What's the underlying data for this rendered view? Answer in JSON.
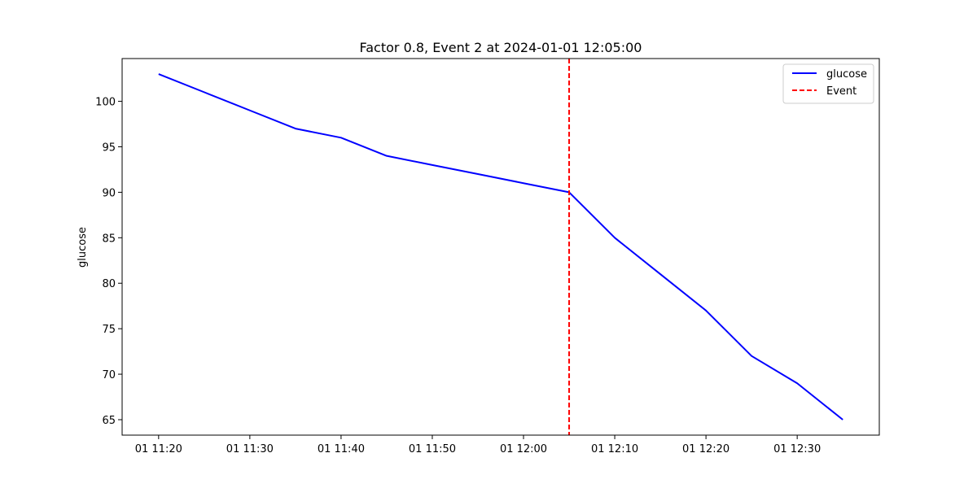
{
  "chart_data": {
    "type": "line",
    "title": "Factor 0.8, Event 2 at 2024-01-01 12:05:00",
    "xlabel": "",
    "ylabel": "glucose",
    "x": [
      "11:20",
      "11:25",
      "11:30",
      "11:35",
      "11:40",
      "11:45",
      "11:50",
      "11:55",
      "12:00",
      "12:05",
      "12:10",
      "12:15",
      "12:20",
      "12:25",
      "12:30",
      "12:35"
    ],
    "series": [
      {
        "name": "glucose",
        "color": "#0000ff",
        "style": "solid",
        "values": [
          103,
          101,
          99,
          97,
          96,
          94,
          93,
          92,
          91,
          90,
          85,
          81,
          77,
          72,
          69,
          65
        ]
      }
    ],
    "event": {
      "name": "Event",
      "x": "12:05",
      "color": "#ff0000",
      "style": "dashed"
    },
    "xlim": [
      "11:16",
      "12:39"
    ],
    "ylim": [
      63.3,
      104.7
    ],
    "x_ticks": [
      {
        "value": "11:20",
        "label": "01 11:20"
      },
      {
        "value": "11:30",
        "label": "01 11:30"
      },
      {
        "value": "11:40",
        "label": "01 11:40"
      },
      {
        "value": "11:50",
        "label": "01 11:50"
      },
      {
        "value": "12:00",
        "label": "01 12:00"
      },
      {
        "value": "12:10",
        "label": "01 12:10"
      },
      {
        "value": "12:20",
        "label": "01 12:20"
      },
      {
        "value": "12:30",
        "label": "01 12:30"
      }
    ],
    "y_ticks": [
      65,
      70,
      75,
      80,
      85,
      90,
      95,
      100
    ],
    "grid": false,
    "legend": {
      "placement": "top-right",
      "entries": [
        {
          "label": "glucose",
          "color": "#0000ff",
          "style": "solid"
        },
        {
          "label": "Event",
          "color": "#ff0000",
          "style": "dashed"
        }
      ]
    }
  }
}
